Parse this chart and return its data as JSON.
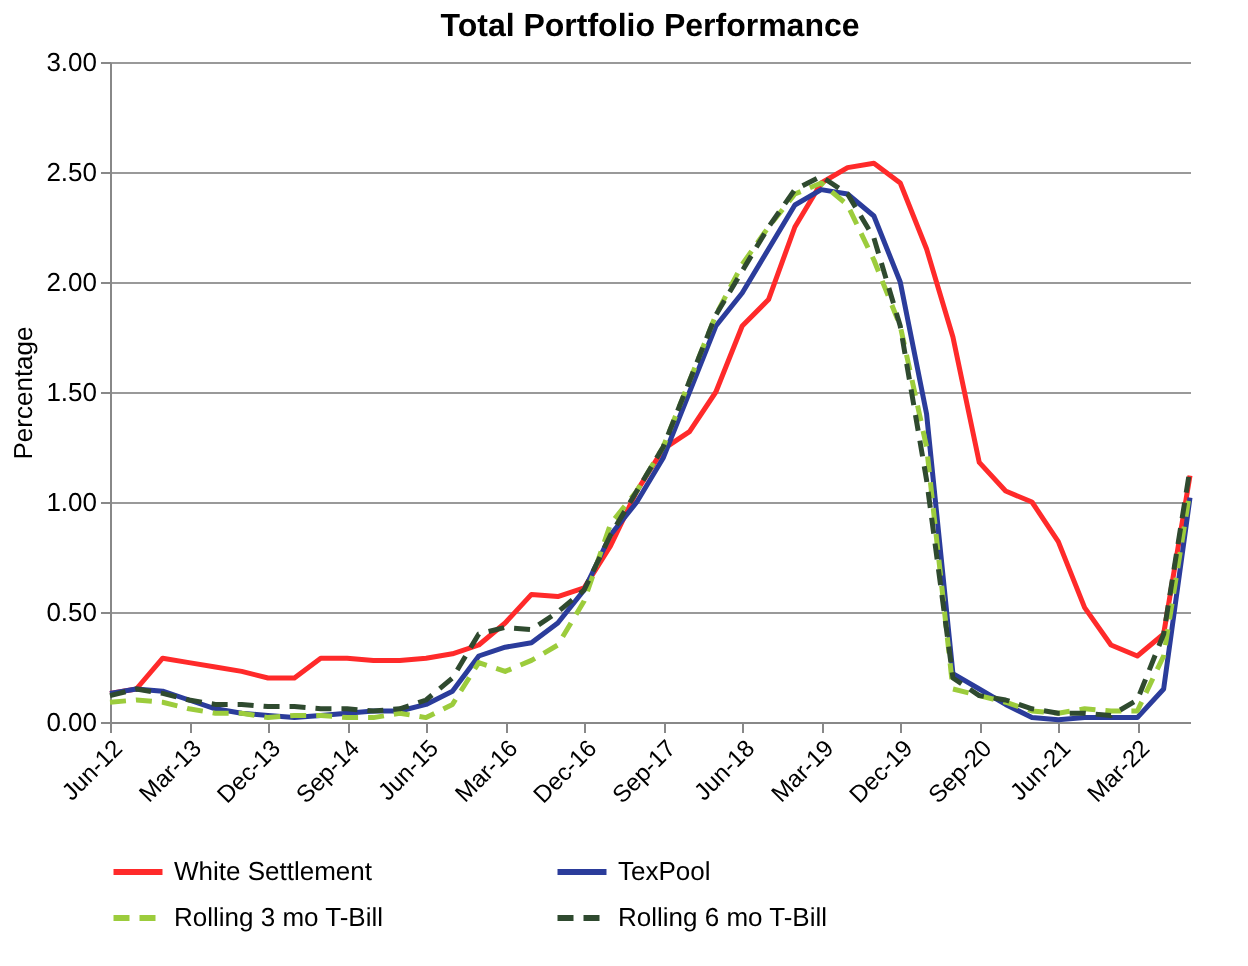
{
  "chart_data": {
    "type": "line",
    "title": "Total Portfolio Performance",
    "ylabel": "Percentage",
    "categories": [
      "Jun-12",
      null,
      null,
      "Mar-13",
      null,
      null,
      "Dec-13",
      null,
      null,
      "Sep-14",
      null,
      null,
      "Jun-15",
      null,
      null,
      "Mar-16",
      null,
      null,
      "Dec-16",
      null,
      null,
      "Sep-17",
      null,
      null,
      "Jun-18",
      null,
      null,
      "Mar-19",
      null,
      null,
      "Dec-19",
      null,
      null,
      "Sep-20",
      null,
      null,
      "Jun-21",
      null,
      null,
      "Mar-22",
      null,
      null
    ],
    "series": [
      {
        "name": "White Settlement",
        "color": "#ff2a2a",
        "line_style": "solid",
        "values": [
          0.13,
          0.15,
          0.29,
          0.27,
          0.25,
          0.23,
          0.2,
          0.2,
          0.29,
          0.29,
          0.28,
          0.28,
          0.29,
          0.31,
          0.35,
          0.45,
          0.58,
          0.57,
          0.61,
          0.8,
          1.05,
          1.24,
          1.32,
          1.5,
          1.8,
          1.92,
          2.25,
          2.45,
          2.52,
          2.54,
          2.45,
          2.15,
          1.75,
          1.18,
          1.05,
          1.0,
          0.82,
          0.52,
          0.35,
          0.3,
          0.4,
          1.12
        ]
      },
      {
        "name": "TexPool",
        "color": "#2b3c9b",
        "line_style": "solid",
        "values": [
          0.13,
          0.15,
          0.14,
          0.1,
          0.06,
          0.04,
          0.03,
          0.02,
          0.03,
          0.04,
          0.05,
          0.05,
          0.08,
          0.14,
          0.3,
          0.34,
          0.36,
          0.45,
          0.6,
          0.85,
          1.0,
          1.2,
          1.5,
          1.8,
          1.95,
          2.15,
          2.35,
          2.42,
          2.4,
          2.3,
          2.0,
          1.4,
          0.22,
          0.15,
          0.08,
          0.02,
          0.01,
          0.02,
          0.02,
          0.02,
          0.15,
          1.02
        ]
      },
      {
        "name": "Rolling 3 mo T-Bill",
        "color": "#9ccc3c",
        "line_style": "dashed",
        "values": [
          0.09,
          0.1,
          0.09,
          0.06,
          0.04,
          0.04,
          0.02,
          0.03,
          0.03,
          0.02,
          0.02,
          0.04,
          0.02,
          0.08,
          0.27,
          0.23,
          0.28,
          0.35,
          0.55,
          0.9,
          1.05,
          1.25,
          1.55,
          1.85,
          2.08,
          2.25,
          2.4,
          2.45,
          2.35,
          2.1,
          1.8,
          1.25,
          0.15,
          0.12,
          0.09,
          0.05,
          0.04,
          0.06,
          0.05,
          0.05,
          0.3,
          1.05
        ]
      },
      {
        "name": "Rolling 6 mo T-Bill",
        "color": "#2f4a2f",
        "line_style": "dashed",
        "values": [
          0.12,
          0.15,
          0.13,
          0.1,
          0.08,
          0.08,
          0.07,
          0.07,
          0.06,
          0.06,
          0.05,
          0.06,
          0.1,
          0.2,
          0.4,
          0.43,
          0.42,
          0.5,
          0.6,
          0.85,
          1.05,
          1.25,
          1.55,
          1.85,
          2.05,
          2.25,
          2.42,
          2.48,
          2.4,
          2.2,
          1.8,
          1.1,
          0.2,
          0.12,
          0.1,
          0.06,
          0.04,
          0.04,
          0.03,
          0.1,
          0.4,
          1.15
        ]
      }
    ],
    "ylim": [
      0,
      3
    ],
    "yticks": [
      {
        "value": 0,
        "label": "0.00"
      },
      {
        "value": 0.5,
        "label": "0.50"
      },
      {
        "value": 1,
        "label": "1.00"
      },
      {
        "value": 1.5,
        "label": "1.50"
      },
      {
        "value": 2,
        "label": "2.00"
      },
      {
        "value": 2.5,
        "label": "2.50"
      },
      {
        "value": 3,
        "label": "3.00"
      }
    ],
    "grid": "y",
    "legend": "bottom",
    "marker": "none"
  }
}
